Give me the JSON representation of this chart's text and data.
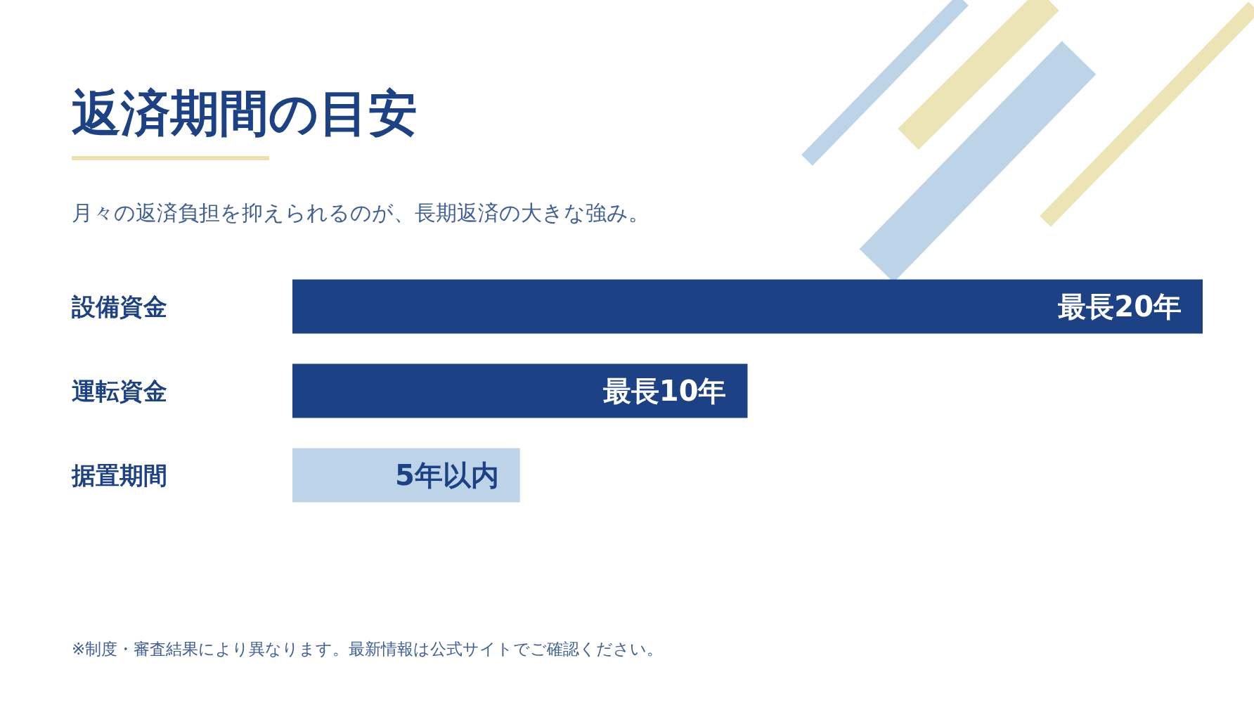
{
  "chart_data": {
    "type": "bar",
    "orientation": "horizontal",
    "title": "返済期間の目安",
    "subtitle": "月々の返済負担を抑えられるのが、長期返済の大きな強み。",
    "categories": [
      "設備資金",
      "運転資金",
      "据置期間"
    ],
    "values": [
      20,
      10,
      5
    ],
    "colors": [
      "#1d4185",
      "#1d4185",
      "#bcd3e8"
    ],
    "value_labels": [
      "最長20年",
      "最長10年",
      "5年以内"
    ],
    "annotations": [
      "※制度・審査結果により異なります。最新情報は公式サイトでご確認ください。"
    ]
  }
}
